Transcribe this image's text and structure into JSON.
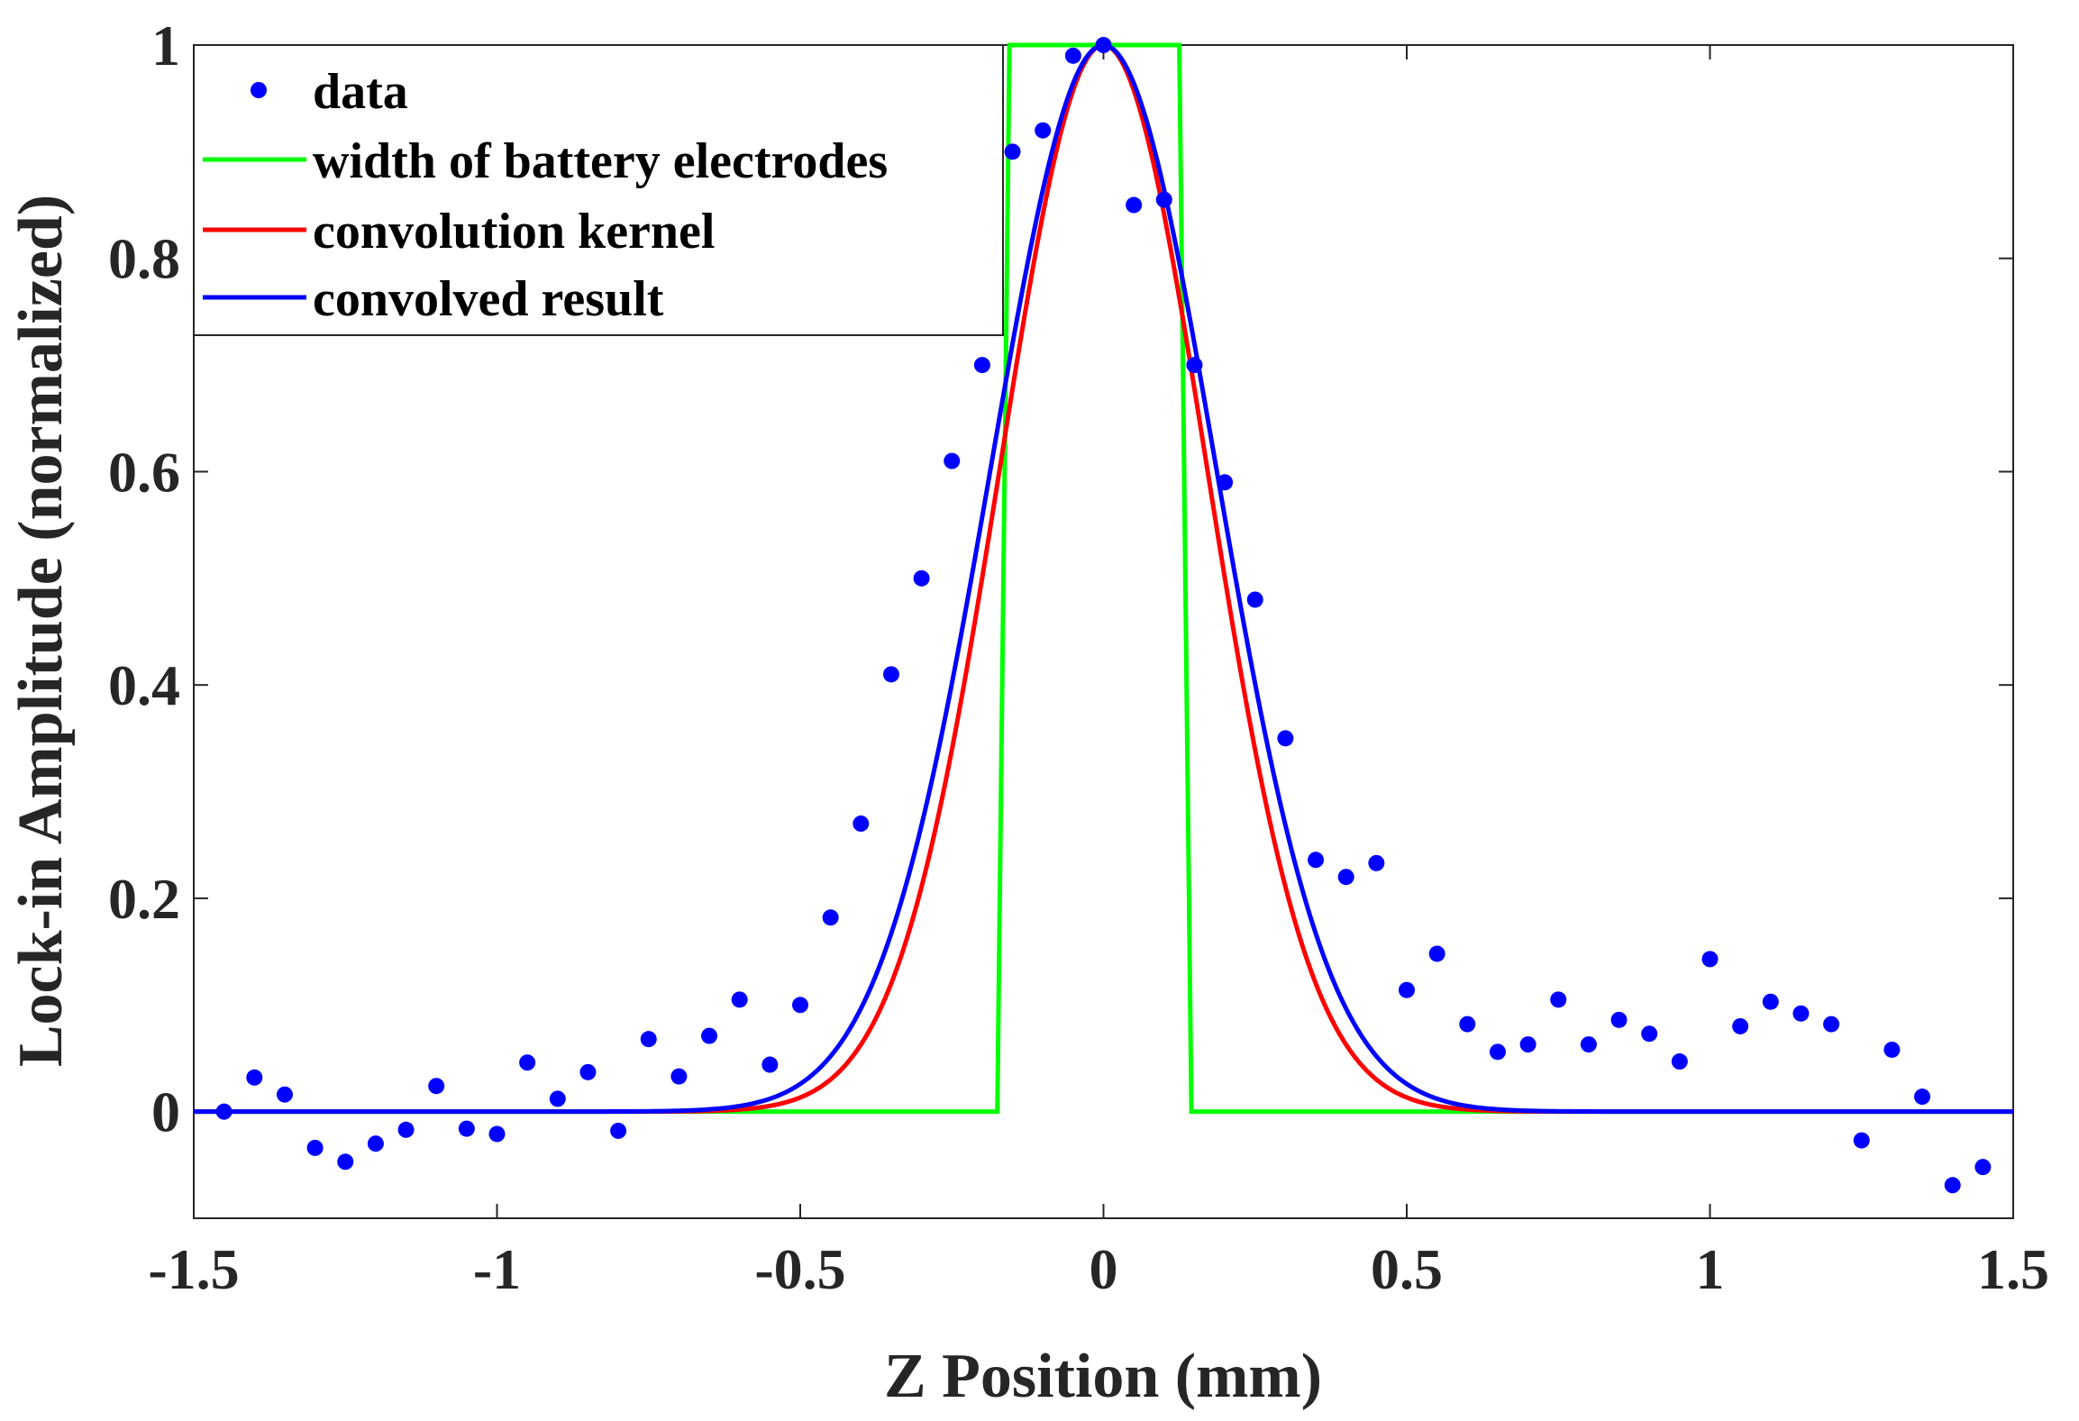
{
  "chart_data": {
    "type": "line",
    "title": "",
    "xlabel": "Z Position (mm)",
    "ylabel": "Lock-in Amplitude (normalized)",
    "xlim": [
      -1.5,
      1.5
    ],
    "ylim": [
      -0.1,
      1.0
    ],
    "xticks": [
      -1.5,
      -1,
      -0.5,
      0,
      0.5,
      1,
      1.5
    ],
    "xtick_labels": [
      "-1.5",
      "-1",
      "-0.5",
      "0",
      "0.5",
      "1",
      "1.5"
    ],
    "yticks": [
      0,
      0.2,
      0.4,
      0.6,
      0.8,
      1
    ],
    "ytick_labels": [
      "0",
      "0.2",
      "0.4",
      "0.6",
      "0.8",
      "1"
    ],
    "grid": false,
    "legend_position": "top-left",
    "series": [
      {
        "name": "data",
        "style": "markers",
        "color": "#0000ff",
        "x": [
          -1.45,
          -1.4,
          -1.35,
          -1.3,
          -1.25,
          -1.2,
          -1.15,
          -1.1,
          -1.05,
          -1.0,
          -0.95,
          -0.9,
          -0.85,
          -0.8,
          -0.75,
          -0.7,
          -0.65,
          -0.6,
          -0.55,
          -0.5,
          -0.45,
          -0.4,
          -0.35,
          -0.3,
          -0.25,
          -0.2,
          -0.15,
          -0.1,
          -0.05,
          0.0,
          0.05,
          0.1,
          0.15,
          0.2,
          0.25,
          0.3,
          0.35,
          0.4,
          0.45,
          0.5,
          0.55,
          0.6,
          0.65,
          0.7,
          0.75,
          0.8,
          0.85,
          0.9,
          0.95,
          1.0,
          1.05,
          1.1,
          1.15,
          1.2,
          1.25,
          1.3,
          1.35,
          1.4,
          1.45
        ],
        "y": [
          0.0,
          0.032,
          0.016,
          -0.034,
          -0.047,
          -0.03,
          -0.017,
          0.024,
          -0.016,
          -0.021,
          0.046,
          0.012,
          0.037,
          -0.018,
          0.068,
          0.033,
          0.071,
          0.105,
          0.044,
          0.1,
          0.182,
          0.27,
          0.41,
          0.5,
          0.61,
          0.7,
          0.9,
          0.92,
          0.99,
          1.0,
          0.85,
          0.855,
          0.7,
          0.59,
          0.48,
          0.35,
          0.236,
          0.22,
          0.233,
          0.114,
          0.148,
          0.082,
          0.056,
          0.063,
          0.105,
          0.063,
          0.086,
          0.073,
          0.047,
          0.143,
          0.08,
          0.103,
          0.092,
          0.082,
          -0.027,
          0.058,
          0.014,
          -0.069,
          -0.052
        ]
      },
      {
        "name": "width of battery electrodes",
        "style": "line",
        "color": "#00ff00",
        "x": [
          -1.5,
          -0.175,
          -0.155,
          0.125,
          0.145,
          1.5
        ],
        "y": [
          0,
          0,
          1,
          1,
          0,
          0
        ]
      },
      {
        "name": "convolution kernel",
        "style": "gaussian",
        "color": "#ff0000",
        "center": 0.0,
        "sigma": 0.17,
        "amplitude": 1.0
      },
      {
        "name": "convolved result",
        "style": "gaussian",
        "color": "#0000ff",
        "center": 0.0,
        "sigma": 0.185,
        "amplitude": 1.0
      }
    ]
  }
}
